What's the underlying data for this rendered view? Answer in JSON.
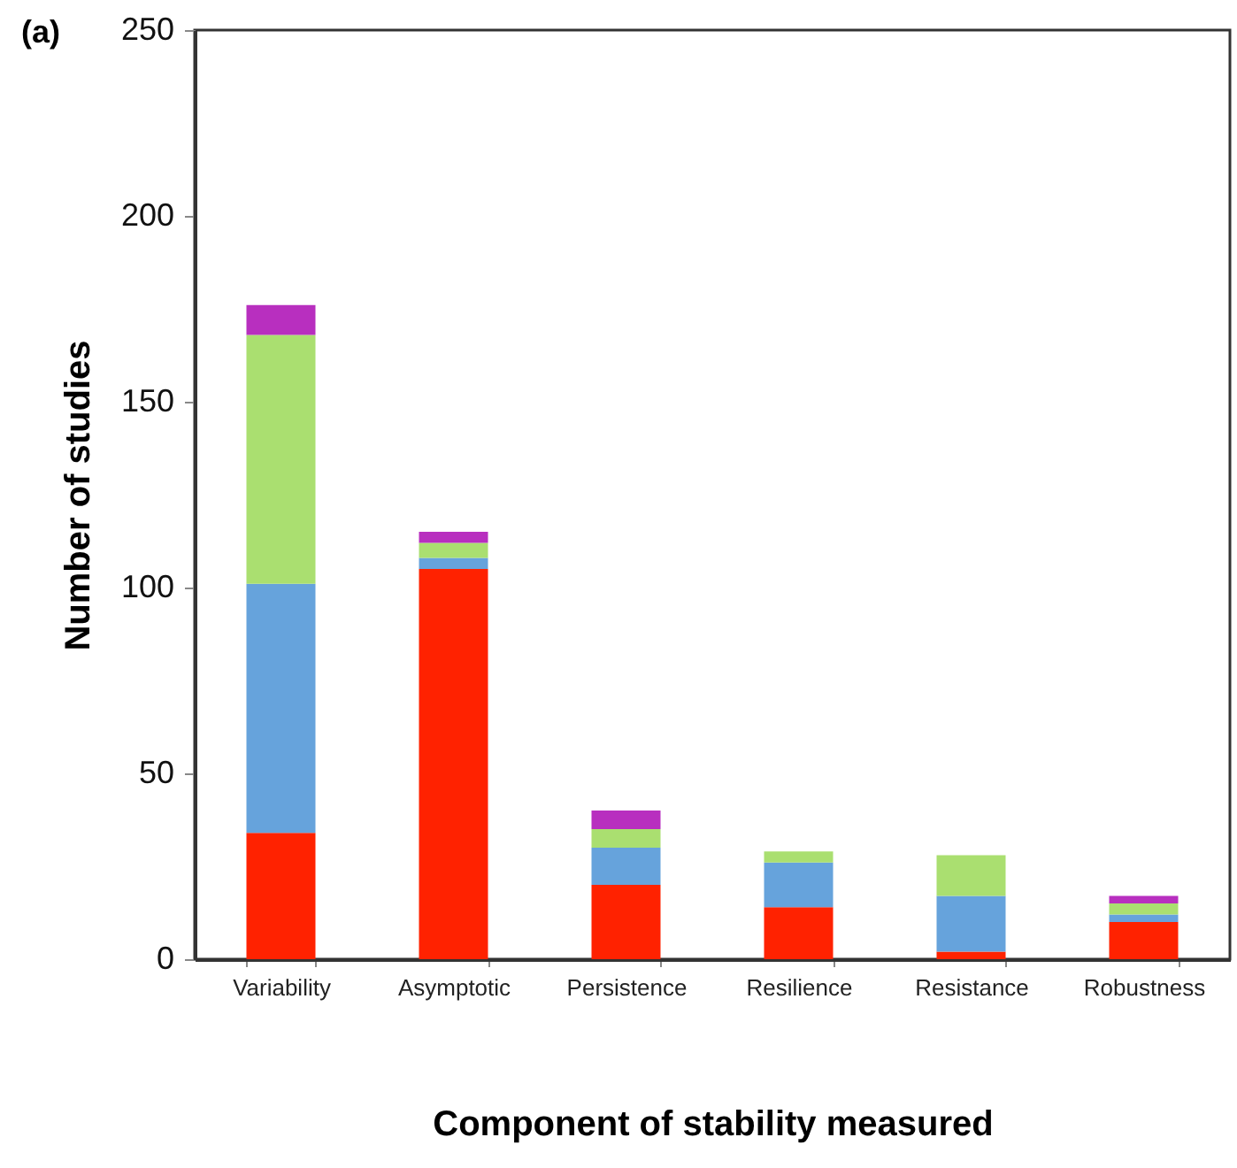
{
  "chart_data": {
    "type": "bar",
    "title": "(a)",
    "xlabel": "Component of stability measured",
    "ylabel": "Number of studies",
    "stacked": true,
    "categories": [
      "Variability",
      "Asymptotic",
      "Persistence",
      "Resilience",
      "Resistance",
      "Robustness"
    ],
    "series": [
      {
        "color": "#ff2200",
        "values": [
          34,
          105,
          20,
          14,
          2,
          10
        ]
      },
      {
        "color": "#66a3dc",
        "values": [
          67,
          3,
          10,
          12,
          15,
          2
        ]
      },
      {
        "color": "#aadf70",
        "values": [
          67,
          4,
          5,
          3,
          11,
          3
        ]
      },
      {
        "color": "#b82fbf",
        "values": [
          8,
          3,
          5,
          null,
          null,
          2
        ]
      }
    ],
    "ylim": [
      0,
      250
    ],
    "yticks": [
      0,
      50,
      100,
      150,
      200,
      250
    ],
    "grid": false,
    "legend": false
  }
}
